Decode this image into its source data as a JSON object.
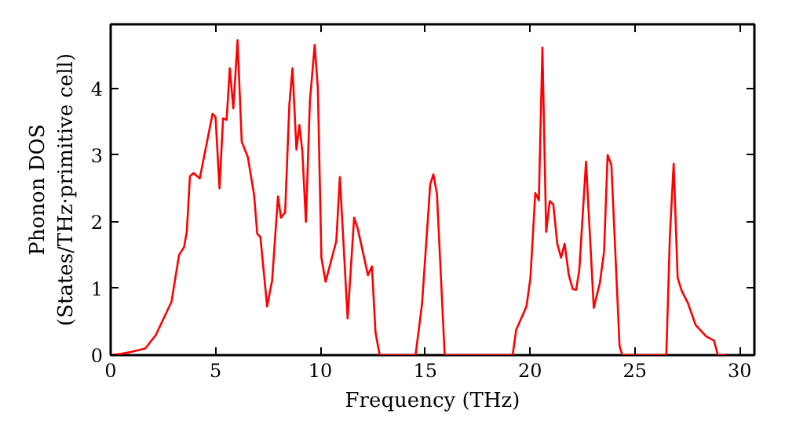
{
  "chart_data": {
    "type": "line",
    "xlabel": "Frequency (THz)",
    "ylabel": "Phonon DOS\n(States/THz·primitive cell)",
    "x": [
      0,
      0.5,
      1,
      1.65,
      2.15,
      2.9,
      3.26,
      3.5,
      3.63,
      3.78,
      3.95,
      4.25,
      4.86,
      5.0,
      5.19,
      5.36,
      5.53,
      5.68,
      5.85,
      6.05,
      6.25,
      6.54,
      6.84,
      6.99,
      7.14,
      7.46,
      7.7,
      7.98,
      8.12,
      8.32,
      8.52,
      8.67,
      8.86,
      9.0,
      9.14,
      9.31,
      9.5,
      9.73,
      9.88,
      10.05,
      10.25,
      10.76,
      10.93,
      11.3,
      11.61,
      11.78,
      12.27,
      12.46,
      12.63,
      12.83,
      14.54,
      14.85,
      15.24,
      15.39,
      15.56,
      15.93,
      19.17,
      19.34,
      19.83,
      20.02,
      20.25,
      20.42,
      20.59,
      20.77,
      20.94,
      21.11,
      21.3,
      21.48,
      21.65,
      21.85,
      22.04,
      22.2,
      22.35,
      22.67,
      23.04,
      23.33,
      23.53,
      23.7,
      23.88,
      24.27,
      24.4,
      26.5,
      26.67,
      26.85,
      27.04,
      27.24,
      27.53,
      27.9,
      28.4,
      28.77,
      28.96,
      29.3
    ],
    "series": [
      {
        "color": "#ff0000",
        "values": [
          0,
          0.02,
          0.05,
          0.1,
          0.3,
          0.8,
          1.5,
          1.62,
          1.85,
          2.68,
          2.73,
          2.65,
          3.62,
          3.57,
          2.5,
          3.55,
          3.53,
          4.3,
          3.7,
          4.72,
          3.2,
          2.97,
          2.4,
          1.82,
          1.77,
          0.73,
          1.12,
          2.38,
          2.06,
          2.14,
          3.75,
          4.3,
          3.08,
          3.45,
          3.06,
          2.0,
          3.8,
          4.65,
          4.0,
          1.46,
          1.1,
          1.71,
          2.67,
          0.55,
          2.06,
          1.9,
          1.2,
          1.33,
          0.34,
          0,
          0,
          0.77,
          2.56,
          2.71,
          2.42,
          0,
          0,
          0.38,
          0.73,
          1.16,
          2.43,
          2.32,
          4.61,
          1.85,
          2.31,
          2.26,
          1.67,
          1.46,
          1.67,
          1.2,
          0.99,
          0.98,
          1.28,
          2.9,
          0.71,
          1.08,
          1.55,
          3.0,
          2.85,
          0.14,
          0,
          0,
          1.79,
          2.87,
          1.16,
          0.96,
          0.78,
          0.45,
          0.28,
          0.22,
          0,
          0
        ]
      }
    ],
    "xlim": [
      0,
      30.7
    ],
    "ylim": [
      0,
      4.96
    ],
    "xticks": [
      0,
      5,
      10,
      15,
      20,
      25,
      30
    ],
    "yticks": [
      0,
      1,
      2,
      3,
      4
    ],
    "grid": false,
    "line_style": "solid"
  }
}
